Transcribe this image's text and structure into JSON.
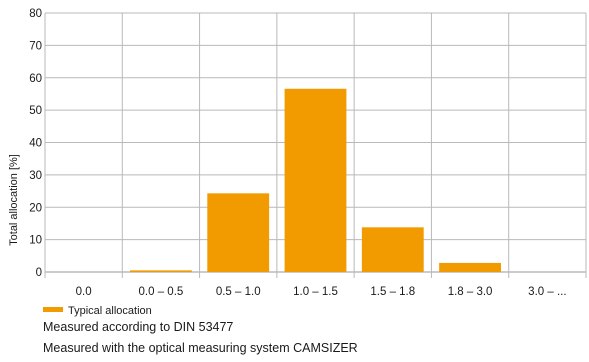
{
  "chart_data": {
    "type": "bar",
    "categories": [
      "0.0",
      "0.0 – 0.5",
      "0.5 – 1.0",
      "1.0 – 1.5",
      "1.5 – 1.8",
      "1.8 – 3.0",
      "3.0 – ..."
    ],
    "series": [
      {
        "name": "Typical allocation",
        "values": [
          0,
          0.5,
          24.3,
          56.6,
          13.8,
          2.8,
          0
        ]
      }
    ],
    "ylabel": "Total allocation [%]",
    "xlabel": "",
    "ylim": [
      0,
      80
    ],
    "yticks": [
      0,
      10,
      20,
      30,
      40,
      50,
      60,
      70,
      80
    ],
    "grid": true,
    "legend": "bottom-left",
    "colors": {
      "bar": "#f29b00",
      "grid": "#b9b9b9",
      "axis": "#9a9a9a"
    }
  },
  "notes": [
    "Measured according to DIN 53477",
    "Measured with the optical measuring system CAMSIZER"
  ]
}
